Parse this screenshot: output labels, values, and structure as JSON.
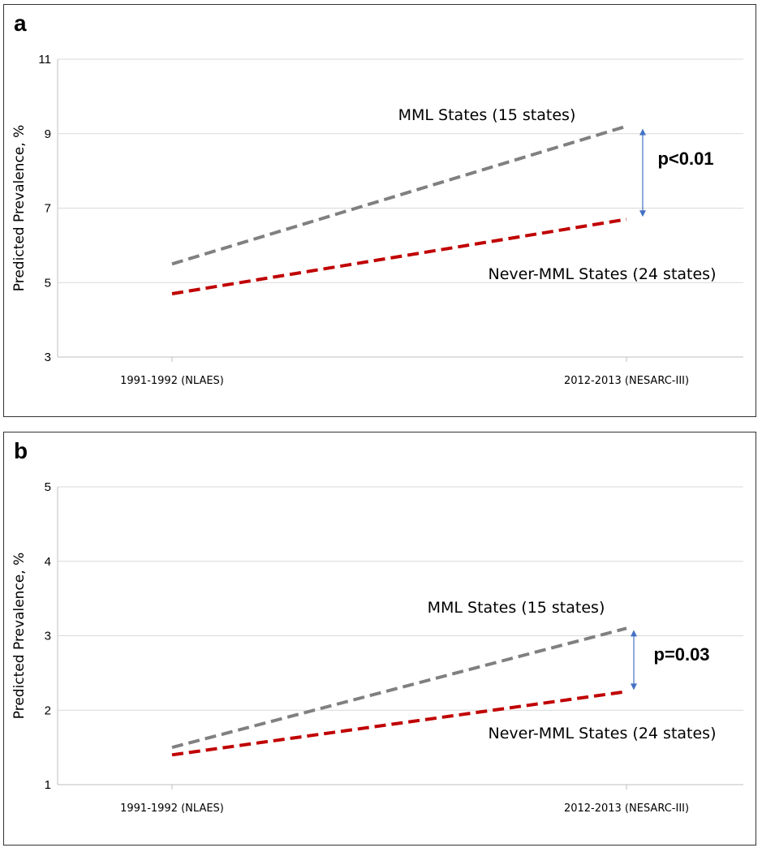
{
  "chart_data": [
    {
      "panel": "a",
      "type": "line",
      "ylabel": "Predicted Prevalence, %",
      "ylim": [
        3,
        11
      ],
      "yticks": [
        3,
        5,
        7,
        9,
        11
      ],
      "categories": [
        "1991-1992 (NLAES)",
        "2012-2013 (NESARC-III)"
      ],
      "series": [
        {
          "name": "MML States (15 states)",
          "values": [
            5.5,
            9.2
          ],
          "color": "#808080"
        },
        {
          "name": "Never-MML States (24 states)",
          "values": [
            4.7,
            6.7
          ],
          "color": "#c00000"
        }
      ],
      "annotation": {
        "text": "p<0.01",
        "color": "#4472c4"
      }
    },
    {
      "panel": "b",
      "type": "line",
      "ylabel": "Predicted Prevalence, %",
      "ylim": [
        1,
        5
      ],
      "yticks": [
        1,
        2,
        3,
        4,
        5
      ],
      "categories": [
        "1991-1992 (NLAES)",
        "2012-2013 (NESARC-III)"
      ],
      "series": [
        {
          "name": "MML States (15 states)",
          "values": [
            1.5,
            3.1
          ],
          "color": "#808080"
        },
        {
          "name": "Never-MML States (24 states)",
          "values": [
            1.4,
            2.25
          ],
          "color": "#c00000"
        }
      ],
      "annotation": {
        "text": "p=0.03",
        "color": "#4472c4"
      }
    }
  ]
}
